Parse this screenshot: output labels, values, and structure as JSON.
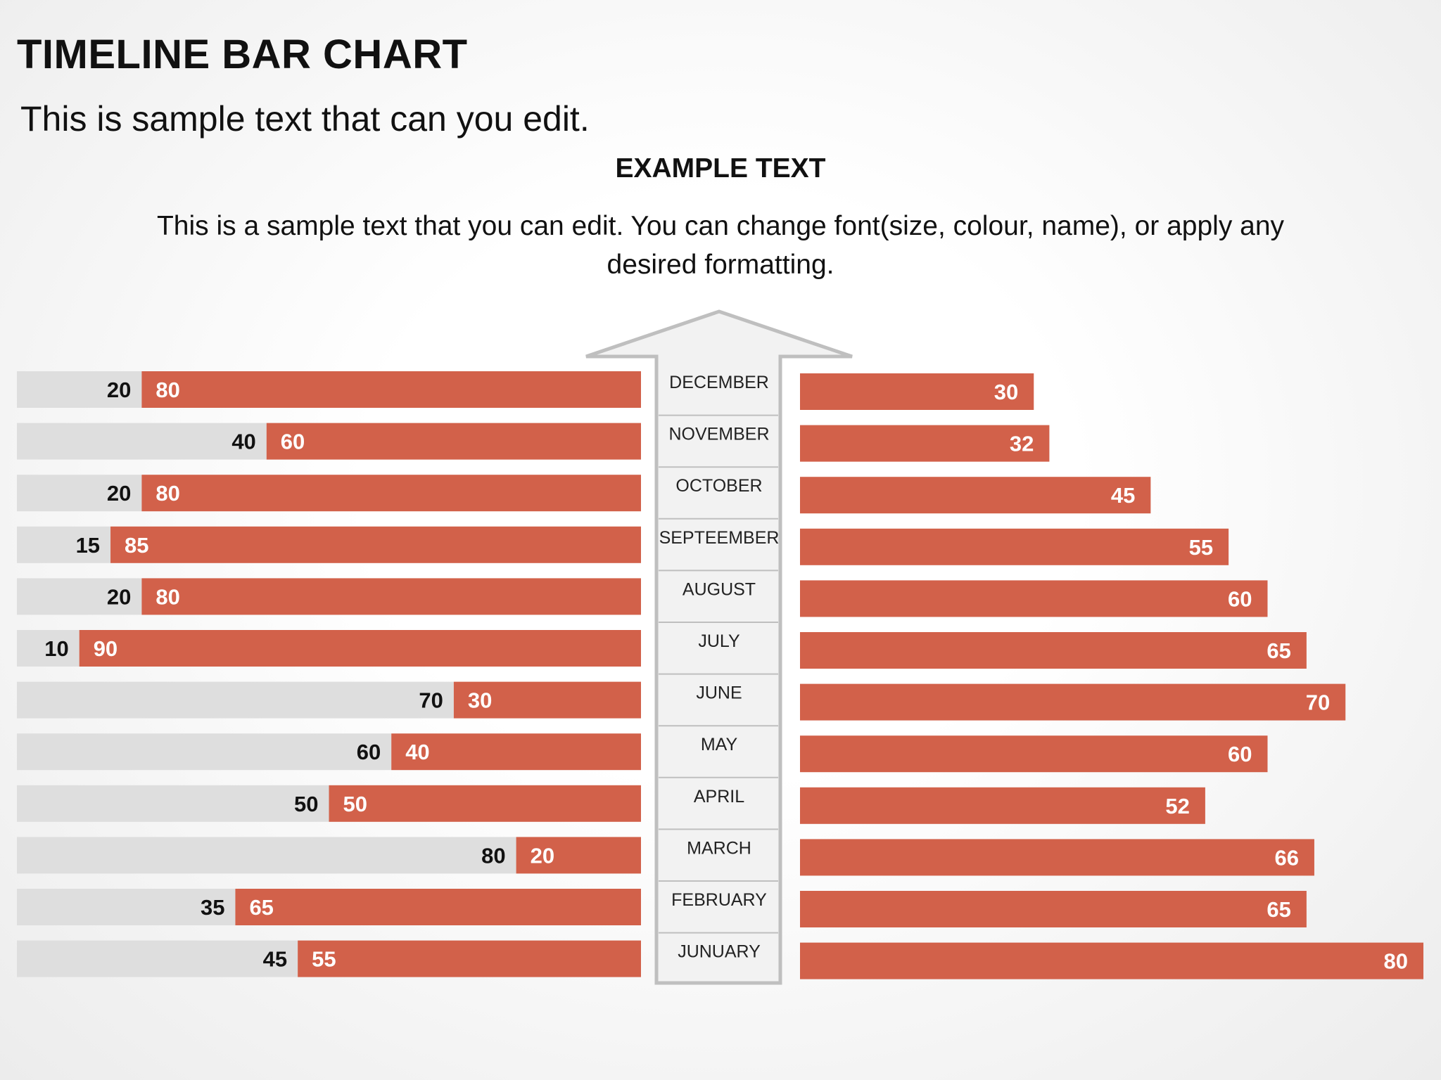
{
  "slide": {
    "title": "TIMELINE BAR CHART",
    "subtitle": "This is sample text that can you edit.",
    "example_title": "EXAMPLE TEXT",
    "description": "This is a sample text that you can edit. You can change font(size, colour, name), or apply any desired formatting."
  },
  "colors": {
    "accent": "#D2614A",
    "remainder": "#DEDEDE",
    "arrow_fill": "#F2F2F2",
    "arrow_stroke": "#BFBFBF",
    "dark_text": "#111111",
    "light_text": "#FFFFFF"
  },
  "chart_data": [
    {
      "type": "bar",
      "orientation": "horizontal",
      "stacked": true,
      "categories": [
        "DECEMBER",
        "NOVEMBER",
        "OCTOBER",
        "SEPTEEMBER",
        "AUGUST",
        "JULY",
        "JUNE",
        "MAY",
        "APRIL",
        "MARCH",
        "FEBRUARY",
        "JUNUARY"
      ],
      "series": [
        {
          "values": [
            20,
            40,
            20,
            15,
            20,
            10,
            70,
            60,
            50,
            80,
            35,
            45
          ]
        },
        {
          "values": [
            80,
            60,
            80,
            85,
            80,
            90,
            30,
            40,
            50,
            20,
            65,
            55
          ]
        }
      ],
      "xlim": [
        0,
        100
      ]
    },
    {
      "type": "bar",
      "orientation": "horizontal",
      "categories": [
        "DECEMBER",
        "NOVEMBER",
        "OCTOBER",
        "SEPTEEMBER",
        "AUGUST",
        "JULY",
        "JUNE",
        "MAY",
        "APRIL",
        "MARCH",
        "FEBRUARY",
        "JUNUARY"
      ],
      "values": [
        30,
        32,
        45,
        55,
        60,
        65,
        70,
        60,
        52,
        66,
        65,
        80
      ],
      "xlim": [
        0,
        80
      ]
    }
  ]
}
